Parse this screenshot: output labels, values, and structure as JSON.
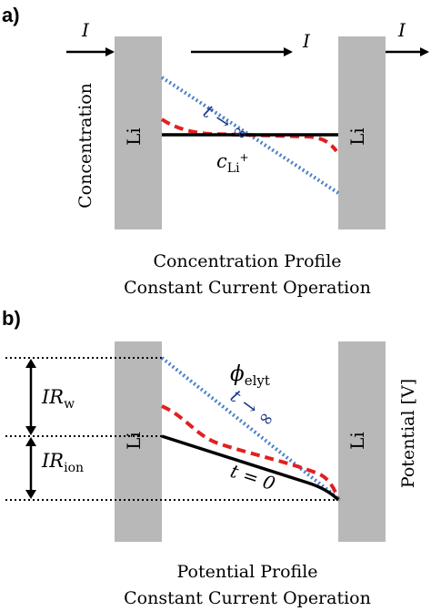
{
  "panel_a": {
    "label": "a)",
    "current_symbol": "I",
    "electrode_left": "Li",
    "electrode_right": "Li",
    "y_axis_label": "Concentration",
    "t_infinity": "t → ∞",
    "conc_main": "c",
    "conc_sub": "Li",
    "conc_sup": "+",
    "caption_line1": "Concentration Profile",
    "caption_line2": "Constant Current Operation"
  },
  "panel_b": {
    "label": "b)",
    "electrode_left": "Li",
    "electrode_right": "Li",
    "y_axis_label": "Potential [V]",
    "phi_main": "ϕ",
    "phi_sub": "elyt",
    "t_infinity": "t → ∞",
    "t_zero": "t = 0",
    "ir_main": "IR",
    "ir_w_sub": "w",
    "ir_ion_sub": "ion",
    "caption_line1": "Potential Profile",
    "caption_line2": "Constant Current Operation"
  },
  "colors": {
    "electrode": "#b8b8b8",
    "steady_state": "#4a7fc8",
    "intermediate": "#e02020",
    "initial": "#000000",
    "t_label": "#1e3a8a"
  }
}
